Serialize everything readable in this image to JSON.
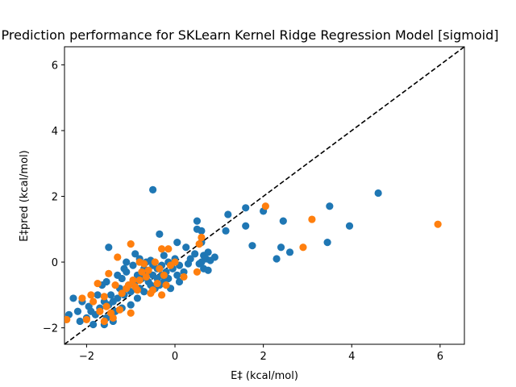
{
  "chart_data": {
    "type": "scatter",
    "title": "Prediction performance for SKLearn Kernel Ridge Regression Model [sigmoid]",
    "xlabel": "E‡ (kcal/mol)",
    "ylabel": "E‡pred (kcal/mol)",
    "xlim": [
      -2.5,
      6.55
    ],
    "ylim": [
      -2.5,
      6.55
    ],
    "xticks": [
      -2,
      0,
      2,
      4,
      6
    ],
    "yticks": [
      -2,
      0,
      2,
      4,
      6
    ],
    "grid": false,
    "legend": "none",
    "reference_line": {
      "style": "dashed",
      "color": "#000000",
      "equation": "y = x"
    },
    "series": [
      {
        "color": "#1f77b4",
        "points": [
          [
            -2.4,
            -1.6
          ],
          [
            -2.2,
            -1.5
          ],
          [
            -2.15,
            -1.8
          ],
          [
            -2.3,
            -1.1
          ],
          [
            -2.1,
            -1.2
          ],
          [
            -1.9,
            -1.5
          ],
          [
            -1.8,
            -1.6
          ],
          [
            -1.7,
            -1.4
          ],
          [
            -1.6,
            -1.9
          ],
          [
            -1.55,
            -1.7
          ],
          [
            -1.5,
            -1.3
          ],
          [
            -1.45,
            -1.0
          ],
          [
            -1.4,
            -1.2
          ],
          [
            -1.4,
            -1.8
          ],
          [
            -1.35,
            -1.5
          ],
          [
            -1.3,
            -1.1
          ],
          [
            -1.25,
            -0.8
          ],
          [
            -1.2,
            -0.5
          ],
          [
            -1.2,
            -1.4
          ],
          [
            -1.15,
            -1.0
          ],
          [
            -1.1,
            -0.3
          ],
          [
            -1.05,
            -0.7
          ],
          [
            -1.0,
            -0.9
          ],
          [
            -1.0,
            -1.3
          ],
          [
            -0.95,
            -0.1
          ],
          [
            -0.9,
            -0.6
          ],
          [
            -0.85,
            -0.4
          ],
          [
            -0.85,
            -1.1
          ],
          [
            -0.8,
            0.1
          ],
          [
            -0.8,
            -0.8
          ],
          [
            -0.75,
            -0.5
          ],
          [
            -0.7,
            -0.2
          ],
          [
            -0.7,
            -0.9
          ],
          [
            -0.65,
            0.0
          ],
          [
            -0.6,
            -0.6
          ],
          [
            -0.6,
            -0.3
          ],
          [
            -0.55,
            -0.7
          ],
          [
            -0.5,
            -0.1
          ],
          [
            -0.5,
            -0.4
          ],
          [
            -0.45,
            -0.8
          ],
          [
            -0.4,
            -0.2
          ],
          [
            -0.4,
            -0.5
          ],
          [
            -0.35,
            -0.7
          ],
          [
            -0.3,
            -0.1
          ],
          [
            -0.3,
            -0.4
          ],
          [
            -0.25,
            -0.6
          ],
          [
            -0.2,
            -0.3
          ],
          [
            -0.15,
            0.0
          ],
          [
            -0.1,
            -0.8
          ],
          [
            -0.05,
            -0.2
          ],
          [
            0.0,
            0.1
          ],
          [
            0.05,
            -0.4
          ],
          [
            0.1,
            -0.1
          ],
          [
            0.1,
            -0.6
          ],
          [
            0.2,
            -0.3
          ],
          [
            -1.85,
            -1.9
          ],
          [
            -1.75,
            -1.0
          ],
          [
            -1.65,
            -0.7
          ],
          [
            -1.6,
            -1.2
          ],
          [
            -1.3,
            -0.4
          ],
          [
            -1.15,
            -0.2
          ],
          [
            -1.5,
            0.45
          ],
          [
            -0.5,
            2.2
          ],
          [
            -0.35,
            0.85
          ],
          [
            0.05,
            0.6
          ],
          [
            0.25,
            0.45
          ],
          [
            0.45,
            0.25
          ],
          [
            0.5,
            1.0
          ],
          [
            0.5,
            1.25
          ],
          [
            0.55,
            -0.05
          ],
          [
            0.6,
            0.0
          ],
          [
            0.6,
            0.95
          ],
          [
            0.6,
            0.6
          ],
          [
            0.65,
            0.2
          ],
          [
            0.65,
            -0.2
          ],
          [
            0.7,
            0.1
          ],
          [
            0.75,
            0.3
          ],
          [
            0.75,
            -0.25
          ],
          [
            0.8,
            0.05
          ],
          [
            0.9,
            0.15
          ],
          [
            1.2,
            1.45
          ],
          [
            1.15,
            0.95
          ],
          [
            1.6,
            1.65
          ],
          [
            1.6,
            1.1
          ],
          [
            1.75,
            0.5
          ],
          [
            2.0,
            1.55
          ],
          [
            2.3,
            0.1
          ],
          [
            2.4,
            0.45
          ],
          [
            2.45,
            1.25
          ],
          [
            2.6,
            0.3
          ],
          [
            3.5,
            1.7
          ],
          [
            3.45,
            0.6
          ],
          [
            3.95,
            1.1
          ],
          [
            4.6,
            2.1
          ],
          [
            -1.1,
            0.0
          ],
          [
            -0.9,
            0.25
          ],
          [
            -0.25,
            0.2
          ],
          [
            0.3,
            -0.05
          ],
          [
            0.35,
            0.1
          ],
          [
            -1.55,
            -0.6
          ],
          [
            -2.0,
            -1.7
          ],
          [
            -1.95,
            -1.35
          ],
          [
            -0.55,
            0.05
          ],
          [
            -0.15,
            -0.5
          ]
        ]
      },
      {
        "color": "#ff7f0e",
        "points": [
          [
            -2.45,
            -1.75
          ],
          [
            -2.0,
            -1.75
          ],
          [
            -1.9,
            -1.0
          ],
          [
            -1.85,
            -1.2
          ],
          [
            -1.75,
            -0.65
          ],
          [
            -1.7,
            -1.5
          ],
          [
            -1.6,
            -1.8
          ],
          [
            -1.55,
            -1.35
          ],
          [
            -1.5,
            -0.35
          ],
          [
            -1.45,
            -1.55
          ],
          [
            -1.4,
            -1.7
          ],
          [
            -1.35,
            -0.7
          ],
          [
            -1.3,
            0.15
          ],
          [
            -1.25,
            -1.45
          ],
          [
            -1.2,
            -0.95
          ],
          [
            -1.1,
            -0.8
          ],
          [
            -1.05,
            -0.7
          ],
          [
            -1.0,
            -1.55
          ],
          [
            -0.95,
            -0.55
          ],
          [
            -0.9,
            -0.75
          ],
          [
            -0.85,
            -0.85
          ],
          [
            -0.8,
            -0.55
          ],
          [
            -0.75,
            -0.3
          ],
          [
            -0.7,
            -0.05
          ],
          [
            -0.65,
            -0.45
          ],
          [
            -0.6,
            -0.25
          ],
          [
            -0.5,
            -0.85
          ],
          [
            -0.45,
            0.0
          ],
          [
            -0.4,
            -0.65
          ],
          [
            -0.35,
            -0.2
          ],
          [
            -0.3,
            0.4
          ],
          [
            -0.25,
            -0.4
          ],
          [
            -0.2,
            -0.7
          ],
          [
            -0.15,
            0.4
          ],
          [
            -0.1,
            -0.1
          ],
          [
            0.0,
            0.0
          ],
          [
            0.2,
            -0.45
          ],
          [
            0.5,
            -0.3
          ],
          [
            0.55,
            0.55
          ],
          [
            0.6,
            0.75
          ],
          [
            -1.0,
            0.55
          ],
          [
            -1.6,
            -1.05
          ],
          [
            -2.1,
            -1.1
          ],
          [
            -0.55,
            -0.95
          ],
          [
            2.05,
            1.7
          ],
          [
            3.1,
            1.3
          ],
          [
            2.9,
            0.45
          ],
          [
            5.95,
            1.15
          ],
          [
            -0.8,
            0.0
          ],
          [
            -0.3,
            -1.0
          ]
        ]
      }
    ]
  }
}
